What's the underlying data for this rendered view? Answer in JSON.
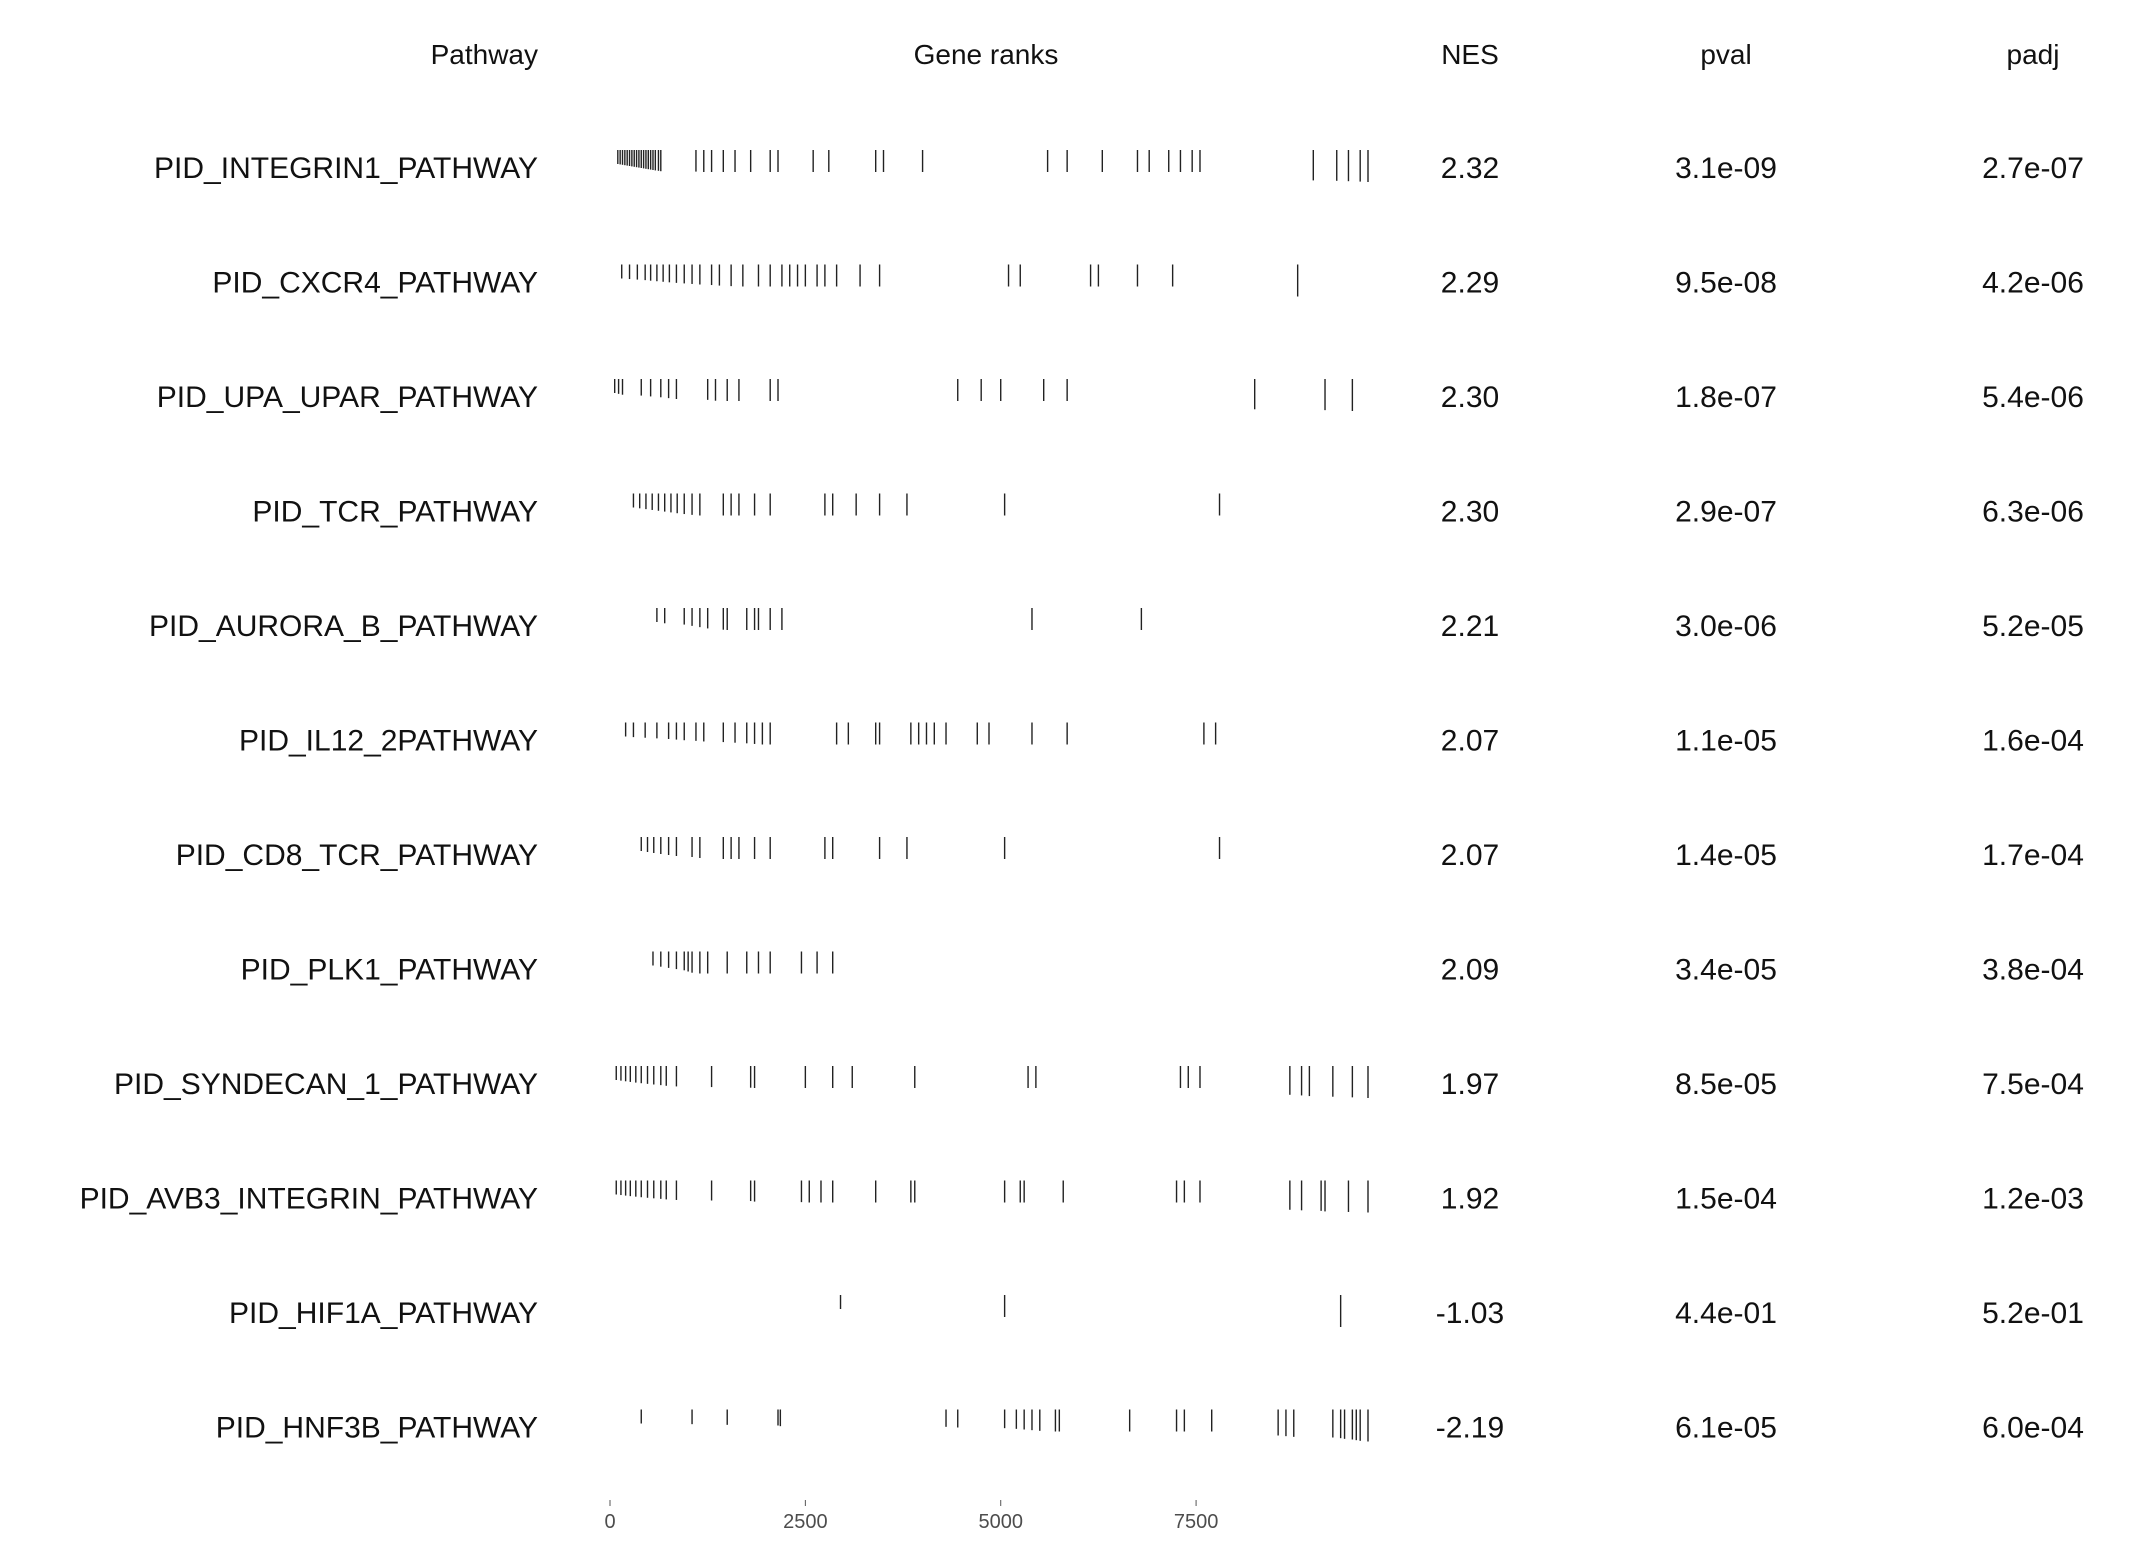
{
  "chart_data": {
    "type": "table",
    "headers": {
      "pathway": "Pathway",
      "ranks": "Gene ranks",
      "nes": "NES",
      "pval": "pval",
      "padj": "padj"
    },
    "x_ticks": [
      0,
      2500,
      5000,
      7500
    ],
    "x_tick_labels": [
      "0",
      "2500",
      "5000",
      "7500"
    ],
    "xlim": [
      0,
      9700
    ],
    "rows": [
      {
        "pathway": "PID_INTEGRIN1_PATHWAY",
        "nes": "2.32",
        "pval": "3.1e-09",
        "padj": "2.7e-07",
        "ranks": [
          100,
          130,
          160,
          190,
          220,
          250,
          280,
          310,
          340,
          370,
          400,
          430,
          460,
          490,
          520,
          550,
          580,
          620,
          650,
          1100,
          1200,
          1300,
          1450,
          1600,
          1800,
          2050,
          2150,
          2600,
          2800,
          3400,
          3500,
          4000,
          5600,
          5850,
          6300,
          6750,
          6900,
          7150,
          7300,
          7450,
          7550,
          9000,
          9300,
          9450,
          9600,
          9700
        ]
      },
      {
        "pathway": "PID_CXCR4_PATHWAY",
        "nes": "2.29",
        "pval": "9.5e-08",
        "padj": "4.2e-06",
        "ranks": [
          150,
          250,
          350,
          450,
          520,
          600,
          680,
          760,
          850,
          950,
          1050,
          1150,
          1300,
          1400,
          1550,
          1700,
          1900,
          2050,
          2200,
          2300,
          2400,
          2500,
          2650,
          2750,
          2900,
          3200,
          3450,
          5100,
          5250,
          6150,
          6250,
          6750,
          7200,
          8800
        ]
      },
      {
        "pathway": "PID_UPA_UPAR_PATHWAY",
        "nes": "2.30",
        "pval": "1.8e-07",
        "padj": "5.4e-06",
        "ranks": [
          60,
          110,
          160,
          400,
          520,
          650,
          750,
          850,
          1250,
          1350,
          1500,
          1650,
          2050,
          2150,
          4450,
          4750,
          5000,
          5550,
          5850,
          8250,
          9150,
          9500
        ]
      },
      {
        "pathway": "PID_TCR_PATHWAY",
        "nes": "2.30",
        "pval": "2.9e-07",
        "padj": "6.3e-06",
        "ranks": [
          300,
          380,
          460,
          540,
          620,
          700,
          780,
          860,
          950,
          1050,
          1150,
          1450,
          1550,
          1650,
          1850,
          2050,
          2750,
          2850,
          3150,
          3450,
          3800,
          5050,
          7800
        ]
      },
      {
        "pathway": "PID_AURORA_B_PATHWAY",
        "nes": "2.21",
        "pval": "3.0e-06",
        "padj": "5.2e-05",
        "ranks": [
          600,
          700,
          950,
          1050,
          1150,
          1250,
          1450,
          1500,
          1750,
          1850,
          1900,
          2050,
          2200,
          5400,
          6800
        ]
      },
      {
        "pathway": "PID_IL12_2PATHWAY",
        "nes": "2.07",
        "pval": "1.1e-05",
        "padj": "1.6e-04",
        "ranks": [
          200,
          300,
          450,
          600,
          750,
          850,
          950,
          1100,
          1200,
          1450,
          1600,
          1750,
          1850,
          1950,
          2050,
          2900,
          3050,
          3400,
          3450,
          3850,
          3950,
          4050,
          4150,
          4300,
          4700,
          4850,
          5400,
          5850,
          7600,
          7750
        ]
      },
      {
        "pathway": "PID_CD8_TCR_PATHWAY",
        "nes": "2.07",
        "pval": "1.4e-05",
        "padj": "1.7e-04",
        "ranks": [
          400,
          480,
          560,
          650,
          750,
          850,
          1050,
          1150,
          1450,
          1550,
          1650,
          1850,
          2050,
          2750,
          2850,
          3450,
          3800,
          5050,
          7800
        ]
      },
      {
        "pathway": "PID_PLK1_PATHWAY",
        "nes": "2.09",
        "pval": "3.4e-05",
        "padj": "3.8e-04",
        "ranks": [
          550,
          650,
          750,
          850,
          950,
          1000,
          1050,
          1150,
          1250,
          1500,
          1750,
          1900,
          2050,
          2450,
          2650,
          2850
        ]
      },
      {
        "pathway": "PID_SYNDECAN_1_PATHWAY",
        "nes": "1.97",
        "pval": "8.5e-05",
        "padj": "7.5e-04",
        "ranks": [
          80,
          140,
          200,
          260,
          330,
          400,
          480,
          560,
          650,
          720,
          850,
          1300,
          1800,
          1850,
          2500,
          2850,
          3100,
          3900,
          5350,
          5450,
          7300,
          7400,
          7550,
          8700,
          8850,
          8950,
          9250,
          9500,
          9700
        ]
      },
      {
        "pathway": "PID_AVB3_INTEGRIN_PATHWAY",
        "nes": "1.92",
        "pval": "1.5e-04",
        "padj": "1.2e-03",
        "ranks": [
          80,
          140,
          200,
          260,
          330,
          400,
          480,
          560,
          650,
          720,
          850,
          1300,
          1800,
          1850,
          2450,
          2550,
          2700,
          2850,
          3400,
          3850,
          3900,
          5050,
          5250,
          5300,
          5800,
          7250,
          7350,
          7550,
          8700,
          8850,
          9100,
          9150,
          9450,
          9700
        ]
      },
      {
        "pathway": "PID_HIF1A_PATHWAY",
        "nes": "-1.03",
        "pval": "4.4e-01",
        "padj": "5.2e-01",
        "ranks": [
          2950,
          5050,
          9350
        ]
      },
      {
        "pathway": "PID_HNF3B_PATHWAY",
        "nes": "-2.19",
        "pval": "6.1e-05",
        "padj": "6.0e-04",
        "ranks": [
          400,
          1050,
          1500,
          2150,
          2180,
          4300,
          4450,
          5050,
          5200,
          5300,
          5400,
          5500,
          5700,
          5750,
          6650,
          7250,
          7350,
          7700,
          8550,
          8650,
          8750,
          9250,
          9350,
          9400,
          9500,
          9550,
          9600,
          9700
        ]
      }
    ]
  }
}
